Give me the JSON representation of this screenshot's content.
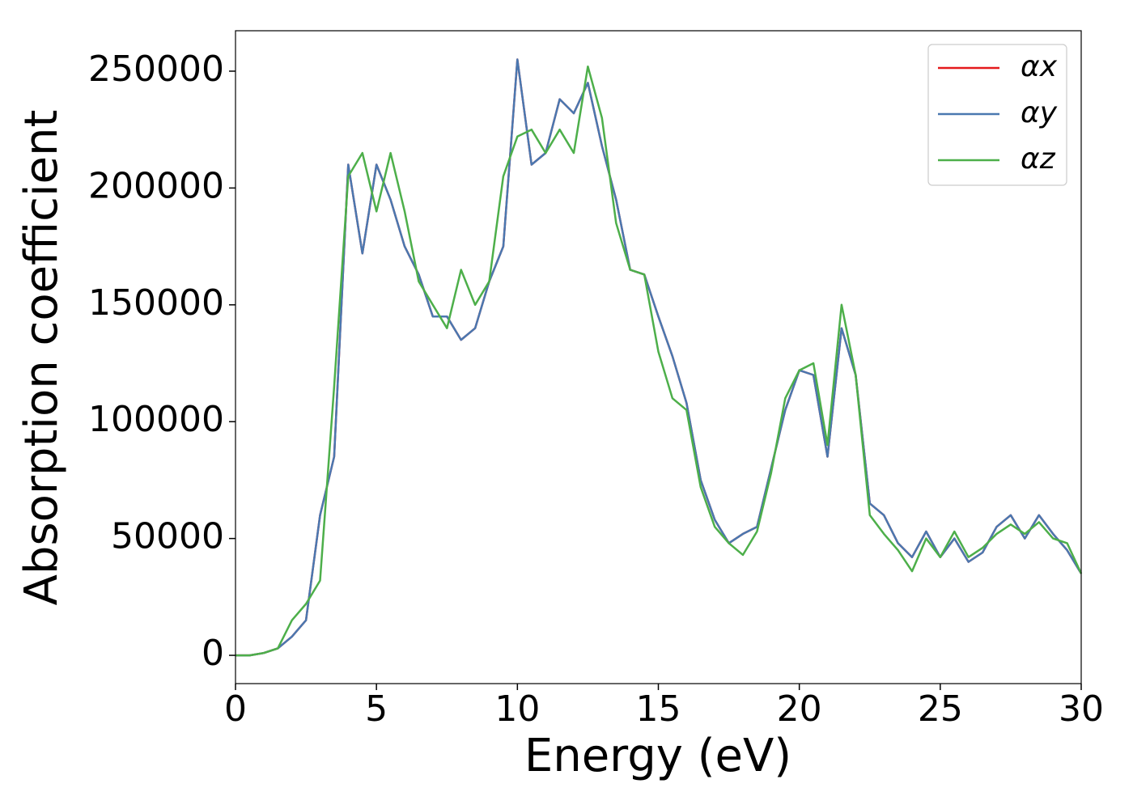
{
  "chart_data": {
    "type": "line",
    "xlabel": "Energy (eV)",
    "ylabel": "Absorption coefficient",
    "x": [
      0,
      0.5,
      1,
      1.5,
      2,
      2.5,
      3,
      3.5,
      4,
      4.5,
      5,
      5.5,
      6,
      6.5,
      7,
      7.5,
      8,
      8.5,
      9,
      9.5,
      10,
      10.5,
      11,
      11.5,
      12,
      12.5,
      13,
      13.5,
      14,
      14.5,
      15,
      15.5,
      16,
      16.5,
      17,
      17.5,
      18,
      18.5,
      19,
      19.5,
      20,
      20.5,
      21,
      21.5,
      22,
      22.5,
      23,
      23.5,
      24,
      24.5,
      25,
      25.5,
      26,
      26.5,
      27,
      27.5,
      28,
      28.5,
      29,
      29.5,
      30
    ],
    "series": [
      {
        "name": "αx",
        "color": "#e41a1c",
        "values": [
          0,
          0,
          1000,
          3000,
          8000,
          15000,
          60000,
          85000,
          210000,
          172000,
          210000,
          195000,
          175000,
          163000,
          145000,
          145000,
          135000,
          140000,
          160000,
          175000,
          255000,
          210000,
          215000,
          238000,
          232000,
          245000,
          218000,
          195000,
          165000,
          163000,
          145000,
          128000,
          108000,
          75000,
          58000,
          48000,
          52000,
          55000,
          80000,
          105000,
          122000,
          120000,
          85000,
          140000,
          120000,
          65000,
          60000,
          48000,
          42000,
          53000,
          42000,
          50000,
          40000,
          44000,
          55000,
          60000,
          50000,
          60000,
          52000,
          45000,
          35000
        ]
      },
      {
        "name": "αy",
        "color": "#4a78b0",
        "values": [
          0,
          0,
          1000,
          3000,
          8000,
          15000,
          60000,
          85000,
          210000,
          172000,
          210000,
          195000,
          175000,
          163000,
          145000,
          145000,
          135000,
          140000,
          160000,
          175000,
          255000,
          210000,
          215000,
          238000,
          232000,
          245000,
          218000,
          195000,
          165000,
          163000,
          145000,
          128000,
          108000,
          75000,
          58000,
          48000,
          52000,
          55000,
          80000,
          105000,
          122000,
          120000,
          85000,
          140000,
          120000,
          65000,
          60000,
          48000,
          42000,
          53000,
          42000,
          50000,
          40000,
          44000,
          55000,
          60000,
          50000,
          60000,
          52000,
          45000,
          35000
        ]
      },
      {
        "name": "αz",
        "color": "#4daf4a",
        "values": [
          0,
          0,
          1000,
          3000,
          15000,
          22000,
          32000,
          115000,
          205000,
          215000,
          190000,
          215000,
          190000,
          160000,
          150000,
          140000,
          165000,
          150000,
          160000,
          205000,
          222000,
          225000,
          215000,
          225000,
          215000,
          252000,
          230000,
          185000,
          165000,
          163000,
          130000,
          110000,
          105000,
          72000,
          55000,
          48000,
          43000,
          53000,
          78000,
          110000,
          122000,
          125000,
          90000,
          150000,
          120000,
          60000,
          52000,
          45000,
          36000,
          50000,
          42000,
          53000,
          42000,
          46000,
          52000,
          56000,
          52000,
          57000,
          50000,
          48000,
          35000
        ]
      }
    ],
    "xlim": [
      0,
      30
    ],
    "xticks": [
      0,
      5,
      10,
      15,
      20,
      25,
      30
    ],
    "ylim": [
      -12100,
      267300
    ],
    "yticks": [
      0,
      50000,
      100000,
      150000,
      200000,
      250000
    ],
    "legend": "upper right"
  }
}
